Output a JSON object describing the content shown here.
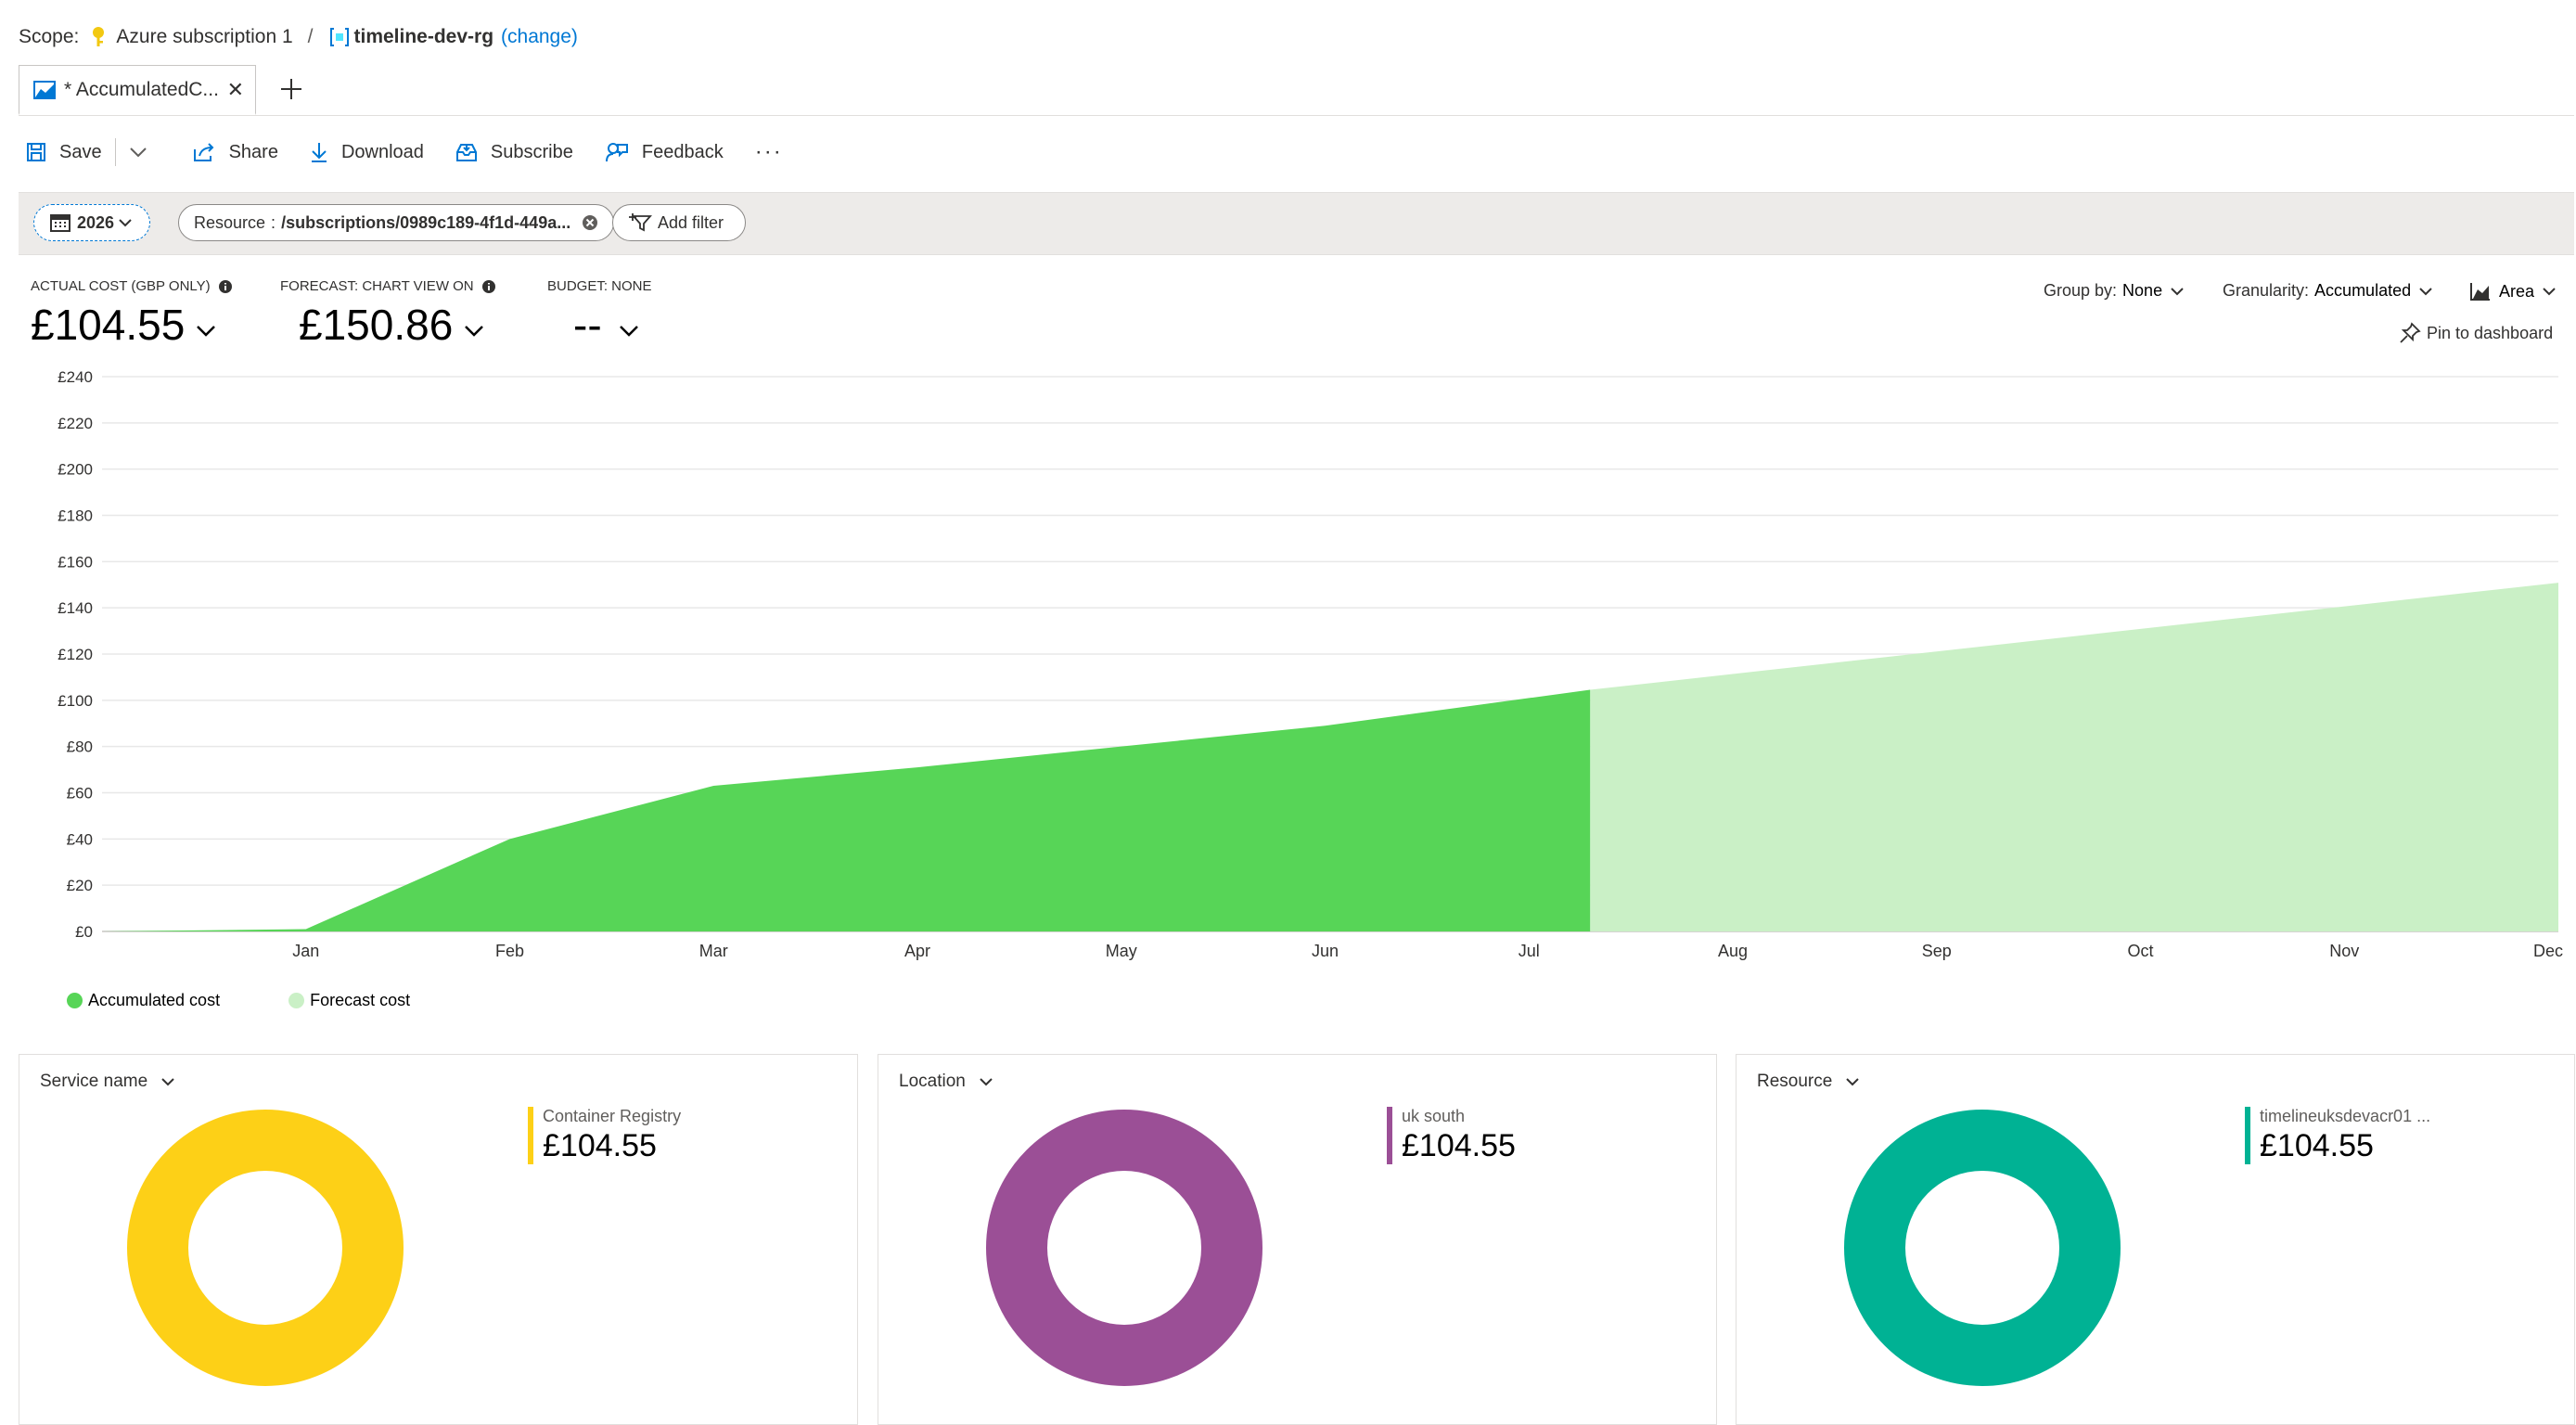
{
  "scope": {
    "label": "Scope:",
    "subscription": "Azure subscription 1",
    "separator": "/",
    "resource_group": "timeline-dev-rg",
    "change_link": "(change)"
  },
  "tabs": [
    {
      "label": "* AccumulatedC...",
      "icon": "area-chart-icon"
    }
  ],
  "toolbar": {
    "save": "Save",
    "share": "Share",
    "download": "Download",
    "subscribe": "Subscribe",
    "feedback": "Feedback",
    "more": "···"
  },
  "filters": {
    "year": "2026",
    "resource_key": "Resource",
    "resource_sep": ":",
    "resource_value": "/subscriptions/0989c189-4f1d-449a...",
    "add_filter": "Add filter"
  },
  "kpis": {
    "actual_label": "ACTUAL COST (GBP ONLY)",
    "actual_value": "£104.55",
    "forecast_label": "FORECAST: CHART VIEW ON",
    "forecast_value": "£150.86",
    "budget_label": "BUDGET: NONE",
    "budget_value": "--"
  },
  "controls": {
    "group_by_label": "Group by:",
    "group_by_value": "None",
    "granularity_label": "Granularity:",
    "granularity_value": "Accumulated",
    "chart_type": "Area",
    "pin": "Pin to dashboard"
  },
  "chart_data": {
    "type": "area",
    "y_tick_labels": [
      "£0",
      "£20",
      "£40",
      "£60",
      "£80",
      "£100",
      "£120",
      "£140",
      "£160",
      "£180",
      "£200",
      "£220",
      "£240"
    ],
    "ylim": [
      0,
      240
    ],
    "x_tick_labels": [
      "Jan",
      "Feb",
      "Mar",
      "Apr",
      "May",
      "Jun",
      "Jul",
      "Aug",
      "Sep",
      "Oct",
      "Nov",
      "Dec"
    ],
    "x_tick_months": [
      1,
      2,
      3,
      4,
      5,
      6,
      7,
      8,
      9,
      10,
      11,
      12
    ],
    "xlim": [
      0.0,
      12.05
    ],
    "grid": true,
    "legend_position": "bottom-left",
    "series": [
      {
        "name": "Accumulated cost",
        "color": "#57d557",
        "points": [
          [
            0.0,
            0
          ],
          [
            1.0,
            1
          ],
          [
            2.0,
            40
          ],
          [
            3.0,
            63
          ],
          [
            4.0,
            71
          ],
          [
            5.0,
            80
          ],
          [
            6.0,
            89
          ],
          [
            7.3,
            104.55
          ]
        ]
      },
      {
        "name": "Forecast cost",
        "color": "#caf0c6",
        "points": [
          [
            7.3,
            104.55
          ],
          [
            12.05,
            150.86
          ]
        ]
      }
    ]
  },
  "cards": [
    {
      "header": "Service name",
      "item": "Container Registry",
      "value": "£104.55",
      "color": "#fdd017"
    },
    {
      "header": "Location",
      "item": "uk south",
      "value": "£104.55",
      "color": "#9b4f96"
    },
    {
      "header": "Resource",
      "item": "timelineuksdevacr01 ...",
      "value": "£104.55",
      "color": "#00b294"
    }
  ]
}
